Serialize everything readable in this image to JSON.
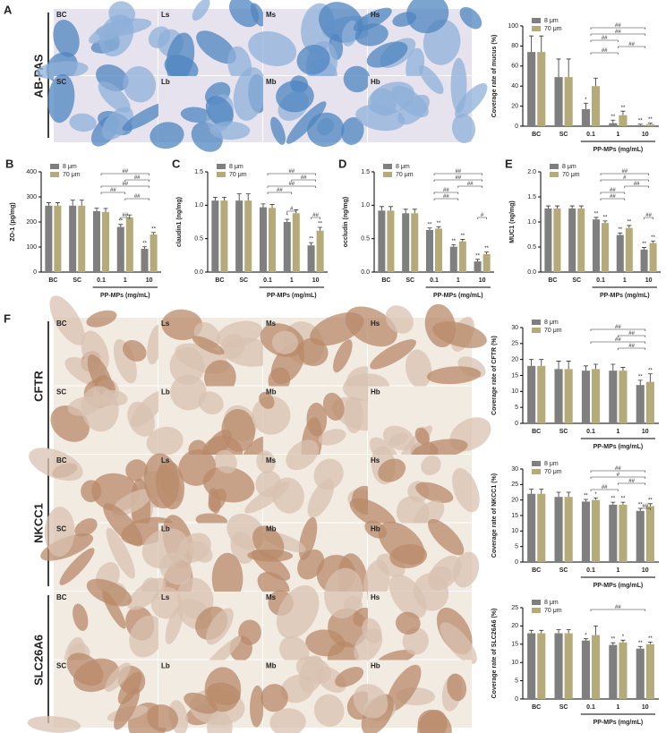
{
  "image_panels": [
    {
      "label": "A",
      "stains": [
        {
          "name": "AB-PAS",
          "tiles": [
            "BC",
            "Ls",
            "Ms",
            "Hs",
            "SC",
            "Lb",
            "Mb",
            "Hb"
          ]
        }
      ]
    },
    {
      "label": "F",
      "stains": [
        {
          "name": "CFTR",
          "tiles": [
            "BC",
            "Ls",
            "Ms",
            "Hs",
            "SC",
            "Lb",
            "Mb",
            "Hb"
          ]
        },
        {
          "name": "NKCC1",
          "tiles": [
            "BC",
            "Ls",
            "Ms",
            "Hs",
            "SC",
            "Lb",
            "Mb",
            "Hb"
          ]
        },
        {
          "name": "SLC26A6",
          "tiles": [
            "BC",
            "Ls",
            "Ms",
            "Hs",
            "SC",
            "Lb",
            "Mb",
            "Hb"
          ]
        }
      ]
    }
  ],
  "chart_data": [
    {
      "type": "bar",
      "y_label": "Coverage rate of mucus (%)",
      "x_label": "PP-MPs (mg/mL)",
      "categories": [
        "BC",
        "SC",
        "0.1",
        "1",
        "10"
      ],
      "ylim": [
        0,
        100
      ],
      "yticks": [
        0,
        20,
        40,
        60,
        80,
        100
      ],
      "series": [
        {
          "name": "8 μm",
          "color": "#7f7f7f",
          "values": [
            74,
            49,
            17,
            3,
            1
          ],
          "errors": [
            16,
            18,
            6,
            3,
            1
          ],
          "significance": [
            null,
            null,
            "*",
            "**",
            "**"
          ]
        },
        {
          "name": "70 μm",
          "color": "#b5ab7a",
          "values": [
            74,
            49,
            40,
            11,
            2
          ],
          "errors": [
            16,
            18,
            8,
            4,
            1
          ],
          "significance": [
            null,
            null,
            null,
            "**",
            "**"
          ]
        }
      ],
      "brackets": [
        {
          "from": 2,
          "to": 4,
          "label": "##"
        },
        {
          "from": 2,
          "to": 4,
          "label": "##"
        },
        {
          "from": 2,
          "to": 3,
          "label": "##"
        },
        {
          "from": 3,
          "to": 4,
          "label": "##"
        },
        {
          "from": 2,
          "to": 3,
          "label": "##"
        }
      ]
    },
    {
      "type": "bar",
      "panel": "B",
      "y_label": "ZO-1 (pg/mg)",
      "x_label": "PP-MPs (mg/mL)",
      "categories": [
        "BC",
        "SC",
        "0.1",
        "1",
        "10"
      ],
      "ylim": [
        0,
        400
      ],
      "yticks": [
        0,
        100,
        200,
        300,
        400
      ],
      "series": [
        {
          "name": "8 μm",
          "color": "#7f7f7f",
          "values": [
            265,
            265,
            243,
            180,
            93
          ],
          "errors": [
            12,
            22,
            12,
            10,
            8
          ],
          "significance": [
            null,
            null,
            null,
            "**",
            "**"
          ]
        },
        {
          "name": "70 μm",
          "color": "#b5ab7a",
          "values": [
            265,
            265,
            240,
            218,
            150
          ],
          "errors": [
            12,
            22,
            14,
            10,
            8
          ],
          "significance": [
            null,
            null,
            null,
            null,
            "**"
          ]
        }
      ],
      "brackets": [
        {
          "from": 2,
          "to": 4,
          "label": "##"
        },
        {
          "from": 3,
          "to": 4,
          "label": "##"
        },
        {
          "from": 2,
          "to": 4,
          "label": "##"
        },
        {
          "from": 2,
          "to": 3,
          "label": "##"
        },
        {
          "from": 3,
          "to": 4,
          "label": "##"
        },
        {
          "from": 3,
          "to": 3,
          "label": "##"
        }
      ]
    },
    {
      "type": "bar",
      "panel": "C",
      "y_label": "claudin1 (ng/mg)",
      "x_label": "PP-MPs (mg/mL)",
      "categories": [
        "BC",
        "SC",
        "0.1",
        "1",
        "10"
      ],
      "ylim": [
        0,
        1.5
      ],
      "yticks": [
        {
          "value": 0,
          "label": "0.0"
        },
        0.5,
        {
          "value": 1,
          "label": "1.0"
        },
        1.5
      ],
      "series": [
        {
          "name": "8 μm",
          "color": "#7f7f7f",
          "values": [
            1.07,
            1.07,
            0.97,
            0.75,
            0.4
          ],
          "errors": [
            0.05,
            0.1,
            0.05,
            0.04,
            0.04
          ],
          "significance": [
            null,
            null,
            null,
            "*",
            "**"
          ]
        },
        {
          "name": "70 μm",
          "color": "#b5ab7a",
          "values": [
            1.07,
            1.07,
            0.96,
            0.88,
            0.62
          ],
          "errors": [
            0.05,
            0.1,
            0.05,
            0.05,
            0.05
          ],
          "significance": [
            null,
            null,
            null,
            null,
            "**"
          ]
        }
      ],
      "brackets": [
        {
          "from": 2,
          "to": 4,
          "label": "##"
        },
        {
          "from": 3,
          "to": 4,
          "label": "##"
        },
        {
          "from": 2,
          "to": 4,
          "label": "##"
        },
        {
          "from": 2,
          "to": 3,
          "label": "##"
        },
        {
          "from": 3,
          "to": 3,
          "label": "#"
        },
        {
          "from": 4,
          "to": 4,
          "label": "##"
        }
      ]
    },
    {
      "type": "bar",
      "panel": "D",
      "y_label": "occludin (ng/mg)",
      "x_label": "PP-MPs (mg/mL)",
      "categories": [
        "BC",
        "SC",
        "0.1",
        "1",
        "10"
      ],
      "ylim": [
        0,
        1.5
      ],
      "yticks": [
        {
          "value": 0,
          "label": "0.0"
        },
        0.5,
        {
          "value": 1,
          "label": "1.0"
        },
        1.5
      ],
      "series": [
        {
          "name": "8 μm",
          "color": "#7f7f7f",
          "values": [
            0.92,
            0.88,
            0.63,
            0.38,
            0.16
          ],
          "errors": [
            0.06,
            0.06,
            0.03,
            0.03,
            0.03
          ],
          "significance": [
            null,
            null,
            "**",
            "**",
            "**"
          ]
        },
        {
          "name": "70 μm",
          "color": "#b5ab7a",
          "values": [
            0.92,
            0.88,
            0.65,
            0.46,
            0.27
          ],
          "errors": [
            0.06,
            0.06,
            0.03,
            0.03,
            0.03
          ],
          "significance": [
            null,
            null,
            "**",
            "**",
            "**"
          ]
        }
      ],
      "brackets": [
        {
          "from": 2,
          "to": 4,
          "label": "##"
        },
        {
          "from": 2,
          "to": 4,
          "label": "##"
        },
        {
          "from": 3,
          "to": 4,
          "label": "##"
        },
        {
          "from": 2,
          "to": 3,
          "label": "##"
        },
        {
          "from": 2,
          "to": 3,
          "label": "##"
        },
        {
          "from": 4,
          "to": 4,
          "label": "#"
        }
      ]
    },
    {
      "type": "bar",
      "panel": "E",
      "y_label": "MUC1 (ng/mg)",
      "x_label": "PP-MPs (mg/mL)",
      "categories": [
        "BC",
        "SC",
        "0.1",
        "1",
        "10"
      ],
      "ylim": [
        0,
        2
      ],
      "yticks": [
        {
          "value": 0,
          "label": "0.0"
        },
        0.5,
        {
          "value": 1,
          "label": "1.0"
        },
        1.5,
        {
          "value": 2,
          "label": "2.0"
        }
      ],
      "series": [
        {
          "name": "8 μm",
          "color": "#7f7f7f",
          "values": [
            1.27,
            1.27,
            1.05,
            0.74,
            0.45
          ],
          "errors": [
            0.05,
            0.05,
            0.04,
            0.04,
            0.04
          ],
          "significance": [
            null,
            null,
            "**",
            "**",
            "**"
          ]
        },
        {
          "name": "70 μm",
          "color": "#b5ab7a",
          "values": [
            1.27,
            1.27,
            0.98,
            0.88,
            0.58
          ],
          "errors": [
            0.05,
            0.05,
            0.04,
            0.05,
            0.04
          ],
          "significance": [
            null,
            null,
            "**",
            "**",
            "**"
          ]
        }
      ],
      "brackets": [
        {
          "from": 2,
          "to": 4,
          "label": "##"
        },
        {
          "from": 2,
          "to": 4,
          "label": "#"
        },
        {
          "from": 3,
          "to": 4,
          "label": "##"
        },
        {
          "from": 2,
          "to": 3,
          "label": "##"
        },
        {
          "from": 2,
          "to": 3,
          "label": "##"
        },
        {
          "from": 4,
          "to": 4,
          "label": "##"
        }
      ]
    },
    {
      "type": "bar",
      "y_label": "Coverage rate of CFTR (%)",
      "x_label": "PP-MPs (mg/mL)",
      "categories": [
        "BC",
        "SC",
        "0.1",
        "1",
        "10"
      ],
      "ylim": [
        0,
        30
      ],
      "yticks": [
        0,
        5,
        10,
        15,
        20,
        25,
        30
      ],
      "series": [
        {
          "name": "8 μm",
          "color": "#7f7f7f",
          "values": [
            18,
            17,
            16.5,
            16.5,
            12
          ],
          "errors": [
            2,
            2.5,
            1.5,
            2,
            1.5
          ],
          "significance": [
            null,
            null,
            null,
            null,
            "**"
          ]
        },
        {
          "name": "70 μm",
          "color": "#b5ab7a",
          "values": [
            18,
            17,
            17,
            16.5,
            13
          ],
          "errors": [
            2,
            2.5,
            1.5,
            1,
            2.5
          ],
          "significance": [
            null,
            null,
            null,
            null,
            "**"
          ]
        }
      ],
      "brackets": [
        {
          "from": 2,
          "to": 4,
          "label": "##"
        },
        {
          "from": 3,
          "to": 4,
          "label": "##"
        },
        {
          "from": 2,
          "to": 4,
          "label": "##"
        },
        {
          "from": 3,
          "to": 4,
          "label": "##"
        }
      ]
    },
    {
      "type": "bar",
      "y_label": "Coverage rate of NKCC1 (%)",
      "x_label": "PP-MPs (mg/mL)",
      "categories": [
        "BC",
        "SC",
        "0.1",
        "1",
        "10"
      ],
      "ylim": [
        0,
        30
      ],
      "yticks": [
        0,
        5,
        10,
        15,
        20,
        25,
        30
      ],
      "series": [
        {
          "name": "8 μm",
          "color": "#7f7f7f",
          "values": [
            22,
            21,
            19.5,
            18.5,
            16.5
          ],
          "errors": [
            1.5,
            1.5,
            0.7,
            0.8,
            0.8
          ],
          "significance": [
            null,
            null,
            "**",
            "**",
            "**"
          ]
        },
        {
          "name": "70 μm",
          "color": "#b5ab7a",
          "values": [
            22,
            21,
            20,
            18.5,
            18
          ],
          "errors": [
            1.5,
            1.5,
            0.7,
            0.8,
            0.8
          ],
          "significance": [
            null,
            null,
            "*",
            "**",
            "**"
          ]
        }
      ],
      "brackets": [
        {
          "from": 2,
          "to": 4,
          "label": "##"
        },
        {
          "from": 2,
          "to": 4,
          "label": "#"
        },
        {
          "from": 3,
          "to": 4,
          "label": "##"
        },
        {
          "from": 2,
          "to": 3,
          "label": "##"
        },
        {
          "from": 4,
          "to": 4,
          "label": "##"
        }
      ]
    },
    {
      "type": "bar",
      "y_label": "Coverage rate of SLC26A6 (%)",
      "x_label": "PP-MPs (mg/mL)",
      "categories": [
        "BC",
        "SC",
        "0.1",
        "1",
        "10"
      ],
      "ylim": [
        0,
        25
      ],
      "yticks": [
        0,
        5,
        10,
        15,
        20,
        25
      ],
      "series": [
        {
          "name": "8 μm",
          "color": "#7f7f7f",
          "values": [
            18,
            18,
            16,
            14.8,
            13.8
          ],
          "errors": [
            0.8,
            1,
            0.5,
            0.6,
            0.6
          ],
          "significance": [
            null,
            null,
            "*",
            "**",
            "**"
          ]
        },
        {
          "name": "70 μm",
          "color": "#b5ab7a",
          "values": [
            18,
            18,
            17.5,
            15.5,
            15
          ],
          "errors": [
            0.8,
            1,
            2.5,
            0.6,
            0.6
          ],
          "significance": [
            null,
            null,
            null,
            "*",
            "**"
          ]
        }
      ],
      "brackets": [
        {
          "from": 2,
          "to": 4,
          "label": "##"
        }
      ]
    }
  ]
}
